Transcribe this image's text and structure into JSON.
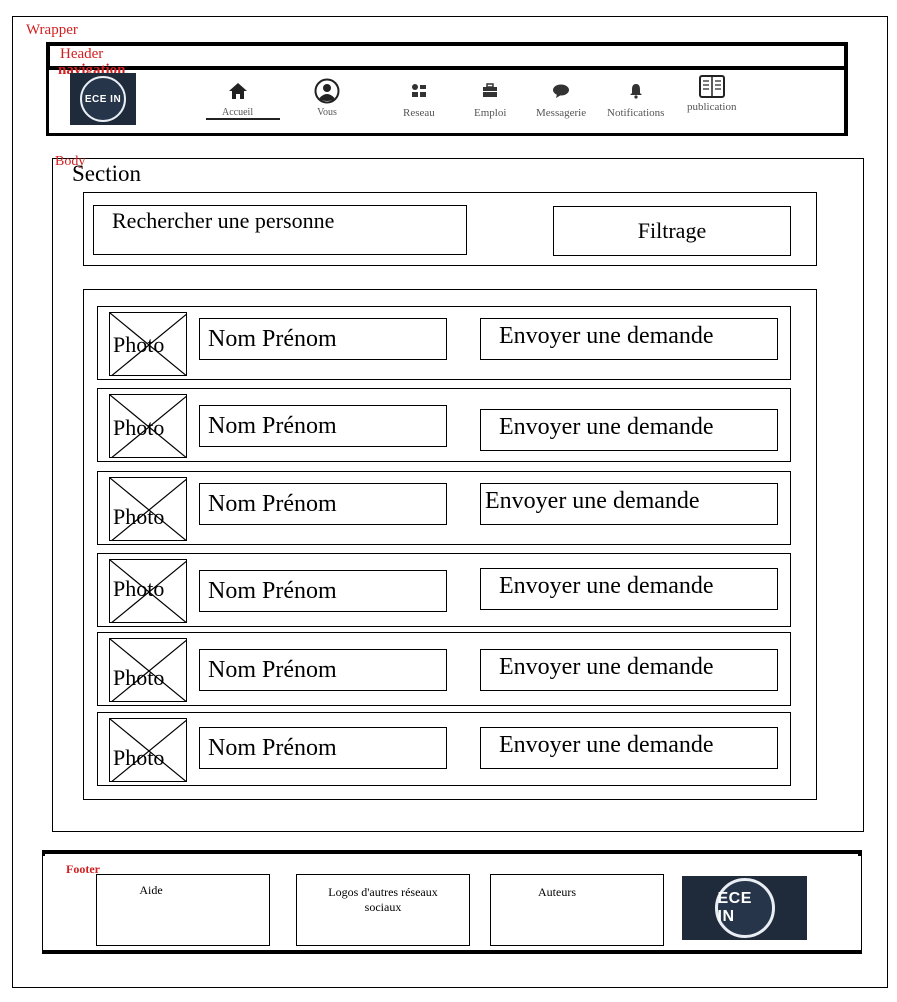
{
  "wrapper": {
    "label": "Wrapper"
  },
  "header": {
    "label": "Header",
    "nav_label": "navigation",
    "logo_text": "ECE IN"
  },
  "nav": [
    {
      "label": "Accueil",
      "icon": "home-icon"
    },
    {
      "label": "Vous",
      "icon": "user-icon"
    },
    {
      "label": "Reseau",
      "icon": "network-icon"
    },
    {
      "label": "Emploi",
      "icon": "briefcase-icon"
    },
    {
      "label": "Messagerie",
      "icon": "chat-icon"
    },
    {
      "label": "Notifications",
      "icon": "bell-icon"
    },
    {
      "label": "publication",
      "icon": "book-icon"
    }
  ],
  "body": {
    "label": "Body",
    "section_label": "Section"
  },
  "search": {
    "placeholder": "Rechercher une personne",
    "filter_label": "Filtrage"
  },
  "results": [
    {
      "photo": "Photo",
      "name": "Nom Prénom",
      "action": "Envoyer une demande"
    },
    {
      "photo": "Photo",
      "name": "Nom Prénom",
      "action": "Envoyer une demande"
    },
    {
      "photo": "Photo",
      "name": "Nom Prénom",
      "action": "Envoyer une demande"
    },
    {
      "photo": "Photo",
      "name": "Nom Prénom",
      "action": "Envoyer une demande"
    },
    {
      "photo": "Photo",
      "name": "Nom Prénom",
      "action": "Envoyer une demande"
    },
    {
      "photo": "Photo",
      "name": "Nom Prénom",
      "action": "Envoyer une demande"
    }
  ],
  "footer": {
    "label": "Footer",
    "help": "Aide",
    "social": "Logos d'autres réseaux sociaux",
    "authors": "Auteurs",
    "logo_text": "ECE IN"
  },
  "colors": {
    "annotation": "#d21f1f",
    "logo_bg": "#1f2a3a"
  }
}
